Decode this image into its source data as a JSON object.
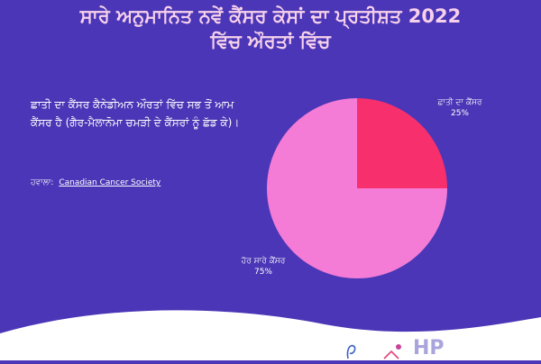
{
  "header": {
    "title_line1": "ਸਾਰੇ ਅਨੁਮਾਨਿਤ ਨਵੇਂ ਕੈਂਸਰ ਕੇਸਾਂ ਦਾ ਪ੍ਰਤੀਸ਼ਤ 2022",
    "title_line2": "ਵਿੱਚ ਔਰਤਾਂ ਵਿੱਚ"
  },
  "description": "ਛਾਤੀ ਦਾ ਕੈਂਸਰ ਕੈਨੇਡੀਅਨ ਔਰਤਾਂ ਵਿੱਚ ਸਭ ਤੋਂ ਆਮ ਕੈਂਸਰ ਹੈ (ਗੈਰ-ਮੈਲਾਨੋਮਾ ਚਮੜੀ ਦੇ ਕੈਂਸਰਾਂ ਨੂੰ ਛੱਡ ਕੇ)।",
  "source": {
    "label": "ਹਵਾਲਾ:",
    "link_text": "Canadian Cancer Society"
  },
  "colors": {
    "background": "#4a36b6",
    "title": "#f7d1eb",
    "slice_breast": "#f72f6d",
    "slice_other": "#f47bd6",
    "wave": "#ffffff"
  },
  "chart_data": {
    "type": "pie",
    "title": "ਸਾਰੇ ਅਨੁਮਾਨਿਤ ਨਵੇਂ ਕੈਂਸਰ ਕੇਸਾਂ ਦਾ ਪ੍ਰਤੀਸ਼ਤ 2022 ਵਿੱਚ ਔਰਤਾਂ ਵਿੱਚ",
    "slices": [
      {
        "label": "ਛਾਤੀ ਦਾ ਕੈਂਸਰ",
        "value": 25,
        "display": "25%"
      },
      {
        "label": "ਹੋਰ ਸਾਰੇ ਕੈਂਸਰ",
        "value": 75,
        "display": "75%"
      }
    ]
  },
  "logos": {
    "hp_text": "HP"
  }
}
